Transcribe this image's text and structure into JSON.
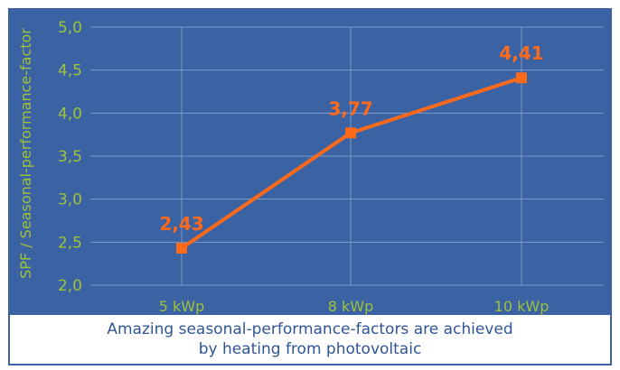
{
  "colors": {
    "plot_background": "#3b63a3",
    "grid": "#7f98c4",
    "axis_text": "#9fc23b",
    "series": "#ff6a1a",
    "caption_text": "#2f5596"
  },
  "chart_data": {
    "type": "line",
    "categories": [
      "5 kWp",
      "8 kWp",
      "10 kWp"
    ],
    "values": [
      2.43,
      3.77,
      4.41
    ],
    "data_labels": [
      "2,43",
      "3,77",
      "4,41"
    ],
    "ylabel": "SPF / Seasonal-performance-factor",
    "xlabel": "",
    "title": "",
    "ylim": [
      2.0,
      5.0
    ],
    "y_ticks": [
      "2,0",
      "2,5",
      "3,0",
      "3,5",
      "4,0",
      "4,5",
      "5,0"
    ],
    "grid": true,
    "legend": "none"
  },
  "caption": {
    "line1": "Amazing seasonal-performance-factors are achieved",
    "line2": "by heating from photovoltaic"
  }
}
